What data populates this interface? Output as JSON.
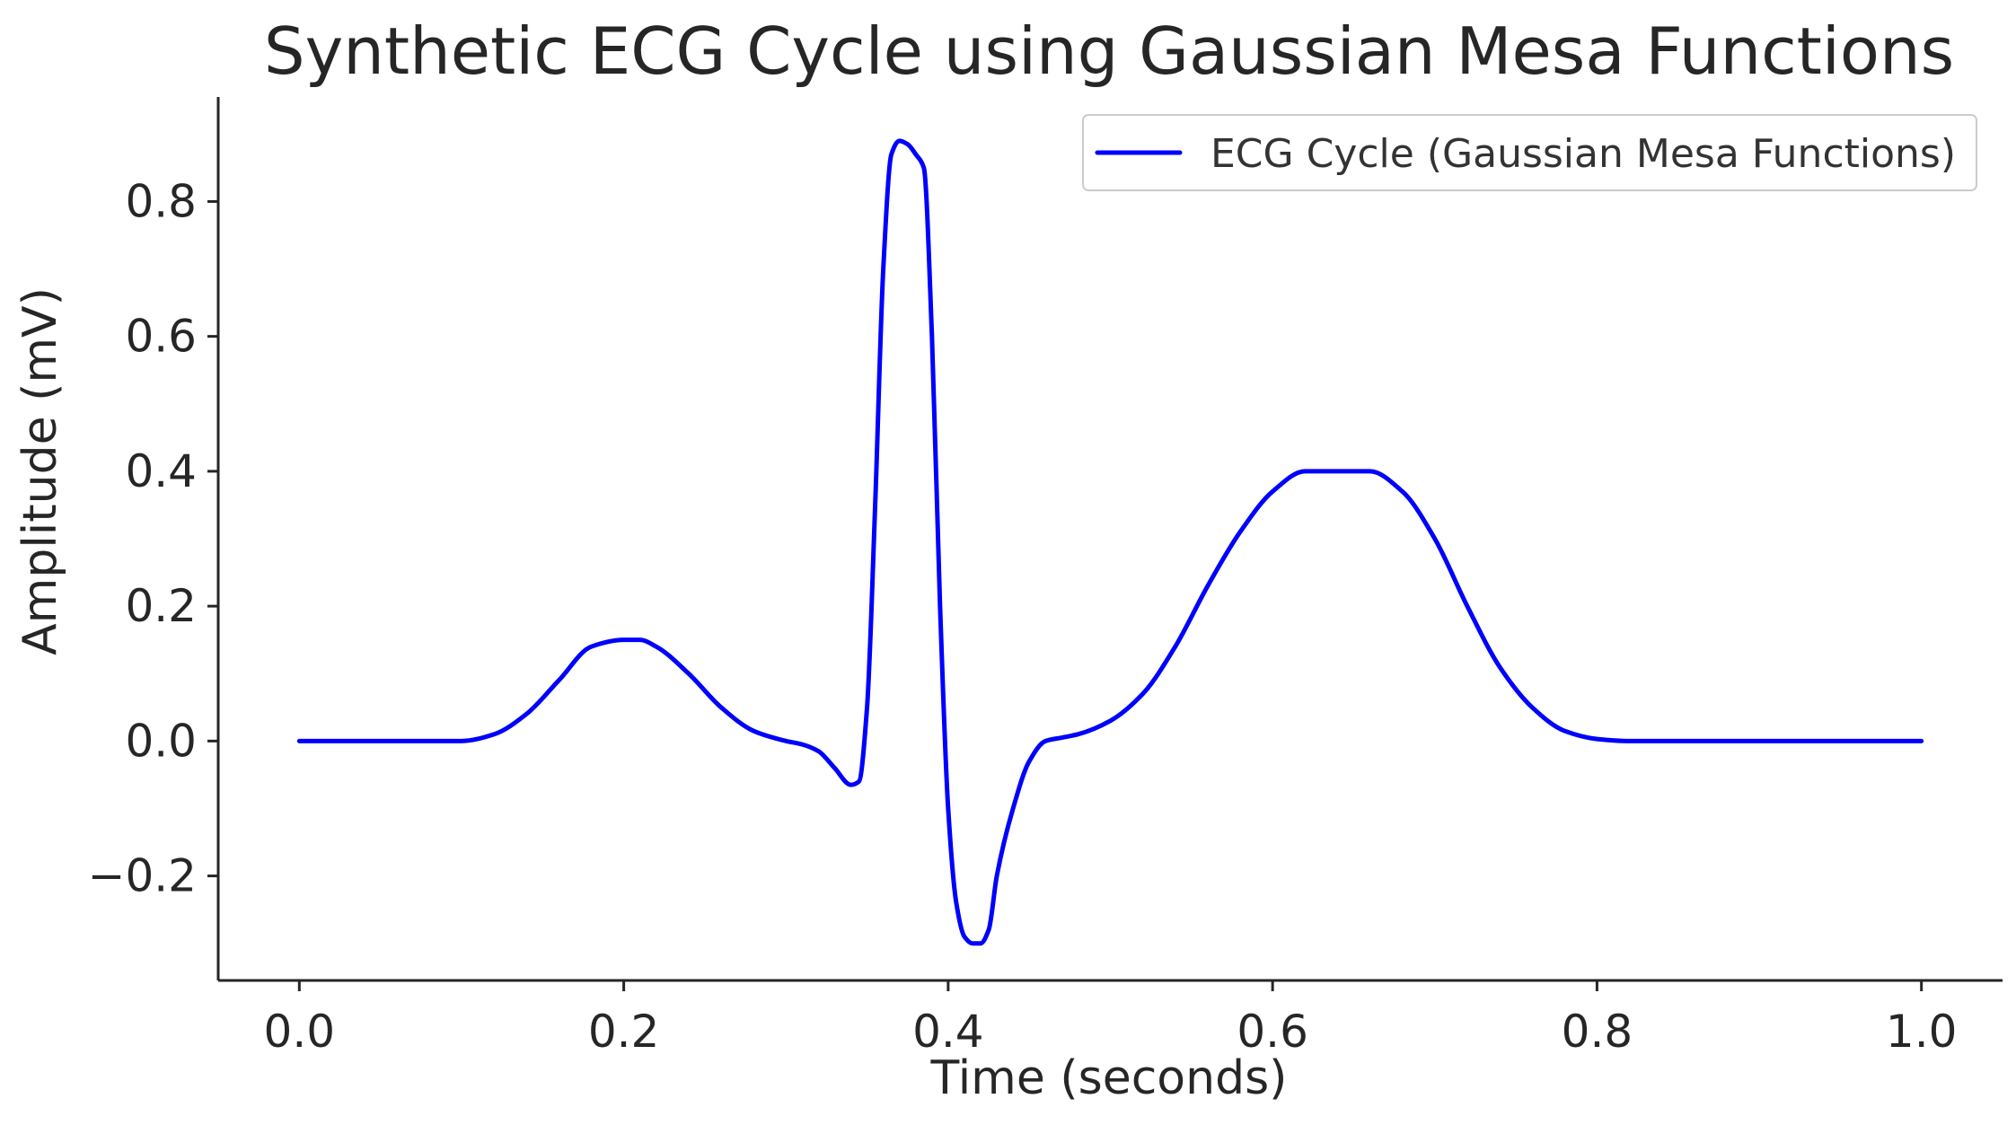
{
  "chart_data": {
    "type": "line",
    "title": "Synthetic ECG Cycle using Gaussian Mesa Functions",
    "xlabel": "Time (seconds)",
    "ylabel": "Amplitude (mV)",
    "xlim": [
      -0.05,
      1.05
    ],
    "ylim": [
      -0.355,
      0.955
    ],
    "x_ticks": [
      0.0,
      0.2,
      0.4,
      0.6,
      0.8,
      1.0
    ],
    "x_tick_labels": [
      "0.0",
      "0.2",
      "0.4",
      "0.6",
      "0.8",
      "1.0"
    ],
    "y_ticks": [
      -0.2,
      0.0,
      0.2,
      0.4,
      0.6,
      0.8
    ],
    "y_tick_labels": [
      "−0.2",
      "0.0",
      "0.2",
      "0.4",
      "0.6",
      "0.8"
    ],
    "grid": false,
    "legend_position": "top-right",
    "series": [
      {
        "name": "ECG Cycle (Gaussian Mesa Functions)",
        "color": "#0000ff",
        "x": [
          0.0,
          0.05,
          0.1,
          0.12,
          0.14,
          0.16,
          0.18,
          0.2,
          0.21,
          0.22,
          0.24,
          0.26,
          0.28,
          0.3,
          0.31,
          0.32,
          0.33,
          0.34,
          0.345,
          0.35,
          0.355,
          0.36,
          0.365,
          0.37,
          0.375,
          0.38,
          0.385,
          0.39,
          0.395,
          0.4,
          0.405,
          0.41,
          0.415,
          0.42,
          0.425,
          0.43,
          0.44,
          0.45,
          0.46,
          0.47,
          0.48,
          0.5,
          0.52,
          0.54,
          0.56,
          0.58,
          0.6,
          0.62,
          0.64,
          0.66,
          0.68,
          0.7,
          0.72,
          0.74,
          0.76,
          0.78,
          0.8,
          0.82,
          0.85,
          0.9,
          1.0
        ],
        "values": [
          0.0,
          0.0,
          0.0,
          0.01,
          0.04,
          0.09,
          0.14,
          0.15,
          0.15,
          0.14,
          0.1,
          0.05,
          0.015,
          0.0,
          -0.005,
          -0.015,
          -0.04,
          -0.065,
          -0.06,
          0.05,
          0.35,
          0.7,
          0.87,
          0.89,
          0.885,
          0.87,
          0.85,
          0.6,
          0.2,
          -0.1,
          -0.24,
          -0.29,
          -0.3,
          -0.3,
          -0.28,
          -0.2,
          -0.1,
          -0.03,
          0.0,
          0.005,
          0.01,
          0.03,
          0.07,
          0.14,
          0.23,
          0.31,
          0.37,
          0.4,
          0.4,
          0.4,
          0.37,
          0.3,
          0.2,
          0.11,
          0.05,
          0.015,
          0.003,
          0.0,
          0.0,
          0.0,
          0.0
        ]
      }
    ]
  }
}
